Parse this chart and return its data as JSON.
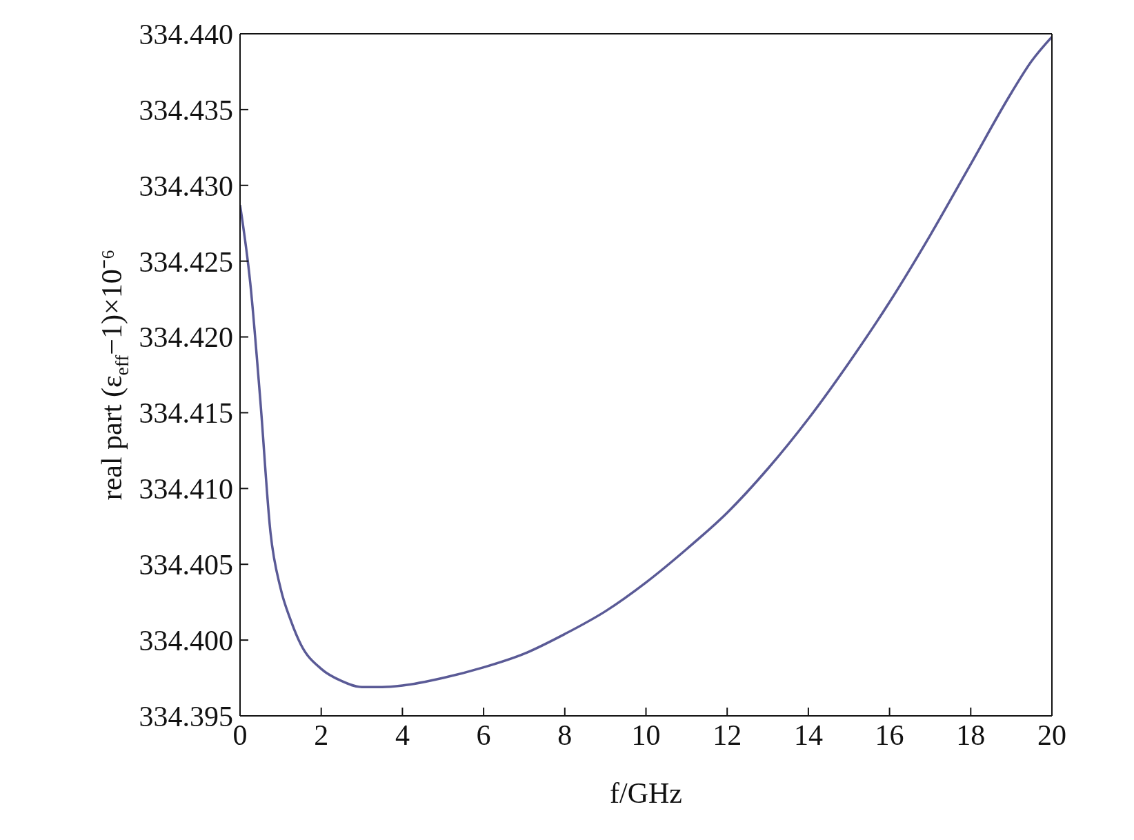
{
  "chart_data": {
    "type": "line",
    "xlabel": "f/GHz",
    "ylabel": "real part (ε$_{eff}$−1)×10⁻⁶",
    "x": [
      0,
      0.25,
      0.5,
      0.75,
      1,
      1.25,
      1.5,
      2,
      2.5,
      3,
      3.5,
      4,
      5,
      6,
      7,
      8,
      9,
      10,
      11,
      12,
      13,
      14,
      15,
      16,
      17,
      18,
      19,
      19.5,
      20
    ],
    "series": [
      {
        "color": "#5a5a96",
        "values": [
          334.4287,
          334.4236,
          334.4158,
          334.4071,
          334.4034,
          334.4013,
          334.3997,
          334.3981,
          334.3973,
          334.3969,
          334.3969,
          334.397,
          334.3975,
          334.3982,
          334.3991,
          334.4004,
          334.4019,
          334.4038,
          334.406,
          334.4084,
          334.4113,
          334.4146,
          334.4183,
          334.4223,
          334.4267,
          334.4314,
          334.4361,
          334.4382,
          334.4398
        ]
      }
    ],
    "xlim": [
      0,
      20
    ],
    "xticks": [
      0,
      2,
      4,
      6,
      8,
      10,
      12,
      14,
      16,
      18,
      20
    ],
    "ylim": [
      334.395,
      334.44
    ],
    "yticks": [
      {
        "value": 334.395,
        "label": "334.395"
      },
      {
        "value": 334.4,
        "label": "334.400"
      },
      {
        "value": 334.405,
        "label": "334.405"
      },
      {
        "value": 334.41,
        "label": "334.410"
      },
      {
        "value": 334.415,
        "label": "334.415"
      },
      {
        "value": 334.42,
        "label": "334.420"
      },
      {
        "value": 334.425,
        "label": "334.425"
      },
      {
        "value": 334.43,
        "label": "334.430"
      },
      {
        "value": 334.435,
        "label": "334.435"
      },
      {
        "value": 334.44,
        "label": "334.440"
      }
    ],
    "grid": false,
    "legend": false,
    "marker": "none",
    "line_style": "solid"
  }
}
